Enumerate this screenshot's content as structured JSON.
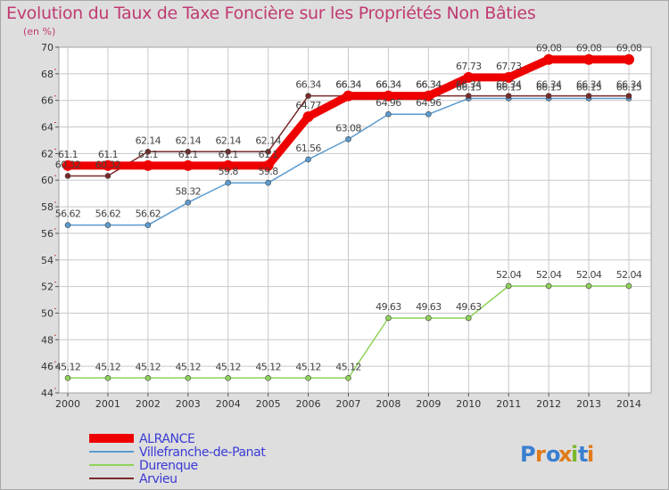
{
  "header": {
    "title": "Evolution du Taux de Taxe Foncière sur les Propriétés Non Bâties",
    "subtitle": "(en %)"
  },
  "logo": {
    "text": "Proxiti"
  },
  "colors": {
    "title": "#c03a72",
    "background": "#dedede",
    "plot_background": "#ffffff",
    "grid": "#c8c8c8"
  },
  "chart_data": {
    "type": "line",
    "title": "Evolution du Taux de Taxe Foncière sur les Propriétés Non Bâties",
    "subtitle": "(en %)",
    "xlabel": "",
    "ylabel": "",
    "x": [
      2000,
      2001,
      2002,
      2003,
      2004,
      2005,
      2006,
      2007,
      2008,
      2009,
      2010,
      2011,
      2012,
      2013,
      2014
    ],
    "ylim": [
      44,
      70
    ],
    "yticks": [
      44,
      46,
      48,
      50,
      52,
      54,
      56,
      58,
      60,
      62,
      64,
      66,
      68,
      70
    ],
    "grid": true,
    "legend_position": "bottom-left",
    "series": [
      {
        "name": "ALRANCE",
        "color": "#ee0000",
        "values": [
          61.1,
          61.1,
          61.1,
          61.1,
          61.1,
          61.1,
          64.77,
          66.34,
          66.34,
          66.34,
          67.73,
          67.73,
          69.08,
          69.08,
          69.08
        ],
        "labels": [
          "61.1",
          "61.1",
          "61.1",
          "61.1",
          "61.1",
          "61.1",
          "64.77",
          "66.34",
          "66.34",
          "66.34",
          "67.73",
          "67.73",
          "69.08",
          "69.08",
          "69.08"
        ]
      },
      {
        "name": "Villefranche-de-Panat",
        "color": "#5b9bd0",
        "values": [
          56.62,
          56.62,
          56.62,
          58.32,
          59.8,
          59.8,
          61.56,
          63.08,
          64.96,
          64.96,
          66.15,
          66.15,
          66.15,
          66.15,
          66.15
        ],
        "labels": [
          "56.62",
          "56.62",
          "56.62",
          "58.32",
          "59.8",
          "59.8",
          "61.56",
          "63.08",
          "64.96",
          "64.96",
          "66.15",
          "66.15",
          "66.15",
          "66.15",
          "66.15"
        ]
      },
      {
        "name": "Durenque",
        "color": "#8fd35a",
        "values": [
          45.12,
          45.12,
          45.12,
          45.12,
          45.12,
          45.12,
          45.12,
          45.12,
          49.63,
          49.63,
          49.63,
          52.04,
          52.04,
          52.04,
          52.04
        ],
        "labels": [
          "45.12",
          "45.12",
          "45.12",
          "45.12",
          "45.12",
          "45.12",
          "45.12",
          "45.12",
          "49.63",
          "49.63",
          "49.63",
          "52.04",
          "52.04",
          "52.04",
          "52.04"
        ]
      },
      {
        "name": "Arvieu",
        "color": "#7a2a2a",
        "values": [
          60.32,
          60.32,
          62.14,
          62.14,
          62.14,
          62.14,
          66.34,
          66.34,
          66.34,
          66.34,
          66.34,
          66.34,
          66.34,
          66.34,
          66.34
        ],
        "labels": [
          "60.32",
          "60.32",
          "62.14",
          "62.14",
          "62.14",
          "62.14",
          "66.34",
          "66.34",
          "66.34",
          "66.34",
          "66.34",
          "66.34",
          "66.34",
          "66.34",
          "66.34"
        ]
      }
    ]
  }
}
